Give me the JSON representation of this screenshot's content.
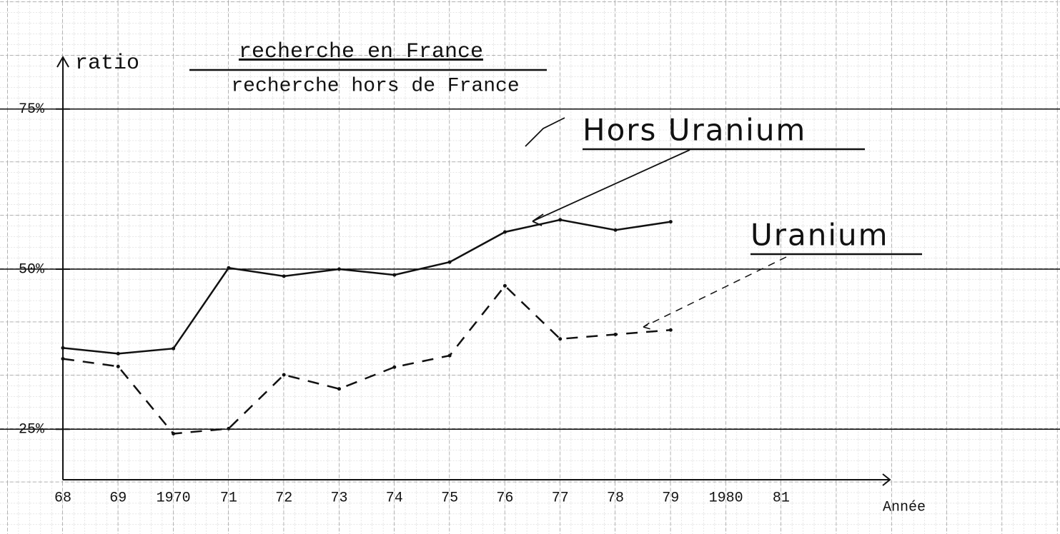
{
  "chart_data": {
    "type": "line",
    "y_label": "ratio",
    "y_label_numerator": "recherche en France",
    "y_label_denominator": "recherche hors de France",
    "x_label": "Année",
    "categories": [
      "68",
      "69",
      "1970",
      "71",
      "72",
      "73",
      "74",
      "75",
      "76",
      "77",
      "78",
      "79",
      "1980",
      "81"
    ],
    "series": [
      {
        "name": "Hors Uranium",
        "color": "#111111",
        "style": "solid",
        "values": [
          37.7,
          36.8,
          37.6,
          50.2,
          48.9,
          50,
          49.1,
          51.1,
          55.8,
          57.7,
          56.1,
          57.4,
          null,
          null
        ]
      },
      {
        "name": "Uranium",
        "color": "#111111",
        "style": "dashed",
        "values": [
          36.0,
          34.8,
          24.3,
          25.1,
          33.5,
          31.3,
          34.7,
          36.5,
          47.4,
          39.1,
          39.8,
          40.5,
          null,
          null
        ]
      }
    ],
    "ylim": [
      17,
      83
    ],
    "yticks": [
      {
        "value": 25,
        "label": "25%"
      },
      {
        "value": 50,
        "label": "50%"
      },
      {
        "value": 75,
        "label": "75%"
      }
    ],
    "grid": true
  }
}
